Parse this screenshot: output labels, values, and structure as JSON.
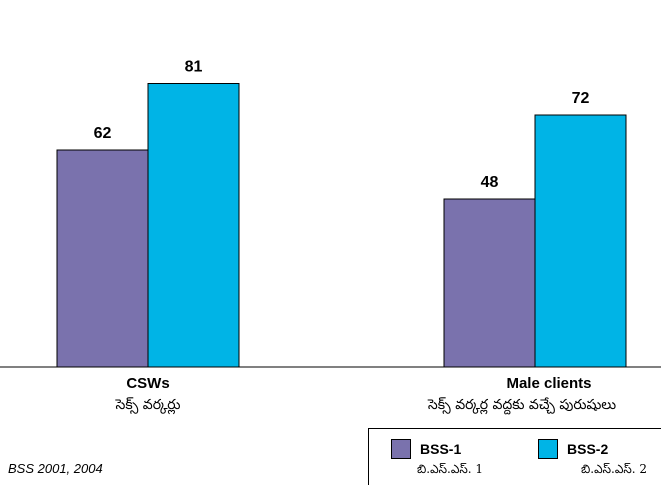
{
  "chart_data": {
    "type": "bar",
    "categories": [
      "CSWs",
      "Male clients"
    ],
    "category_subtitles": [
      "సెక్స్ వర్కర్లు",
      "సెక్స్ వర్కర్ల వద్దకు వచ్చే పురుషులు"
    ],
    "series": [
      {
        "name": "BSS-1",
        "subtitle": "బి.ఎస్.ఎస్. 1",
        "color": "#7a72ad",
        "values": [
          62,
          48
        ]
      },
      {
        "name": "BSS-2",
        "subtitle": "బి.ఎస్.ఎస్. 2",
        "color": "#00b4e6",
        "values": [
          81,
          72
        ]
      }
    ],
    "ylim": [
      0,
      100
    ],
    "grid": false,
    "legend_position": "bottom-right",
    "value_labels": true
  },
  "source": "BSS 2001, 2004"
}
